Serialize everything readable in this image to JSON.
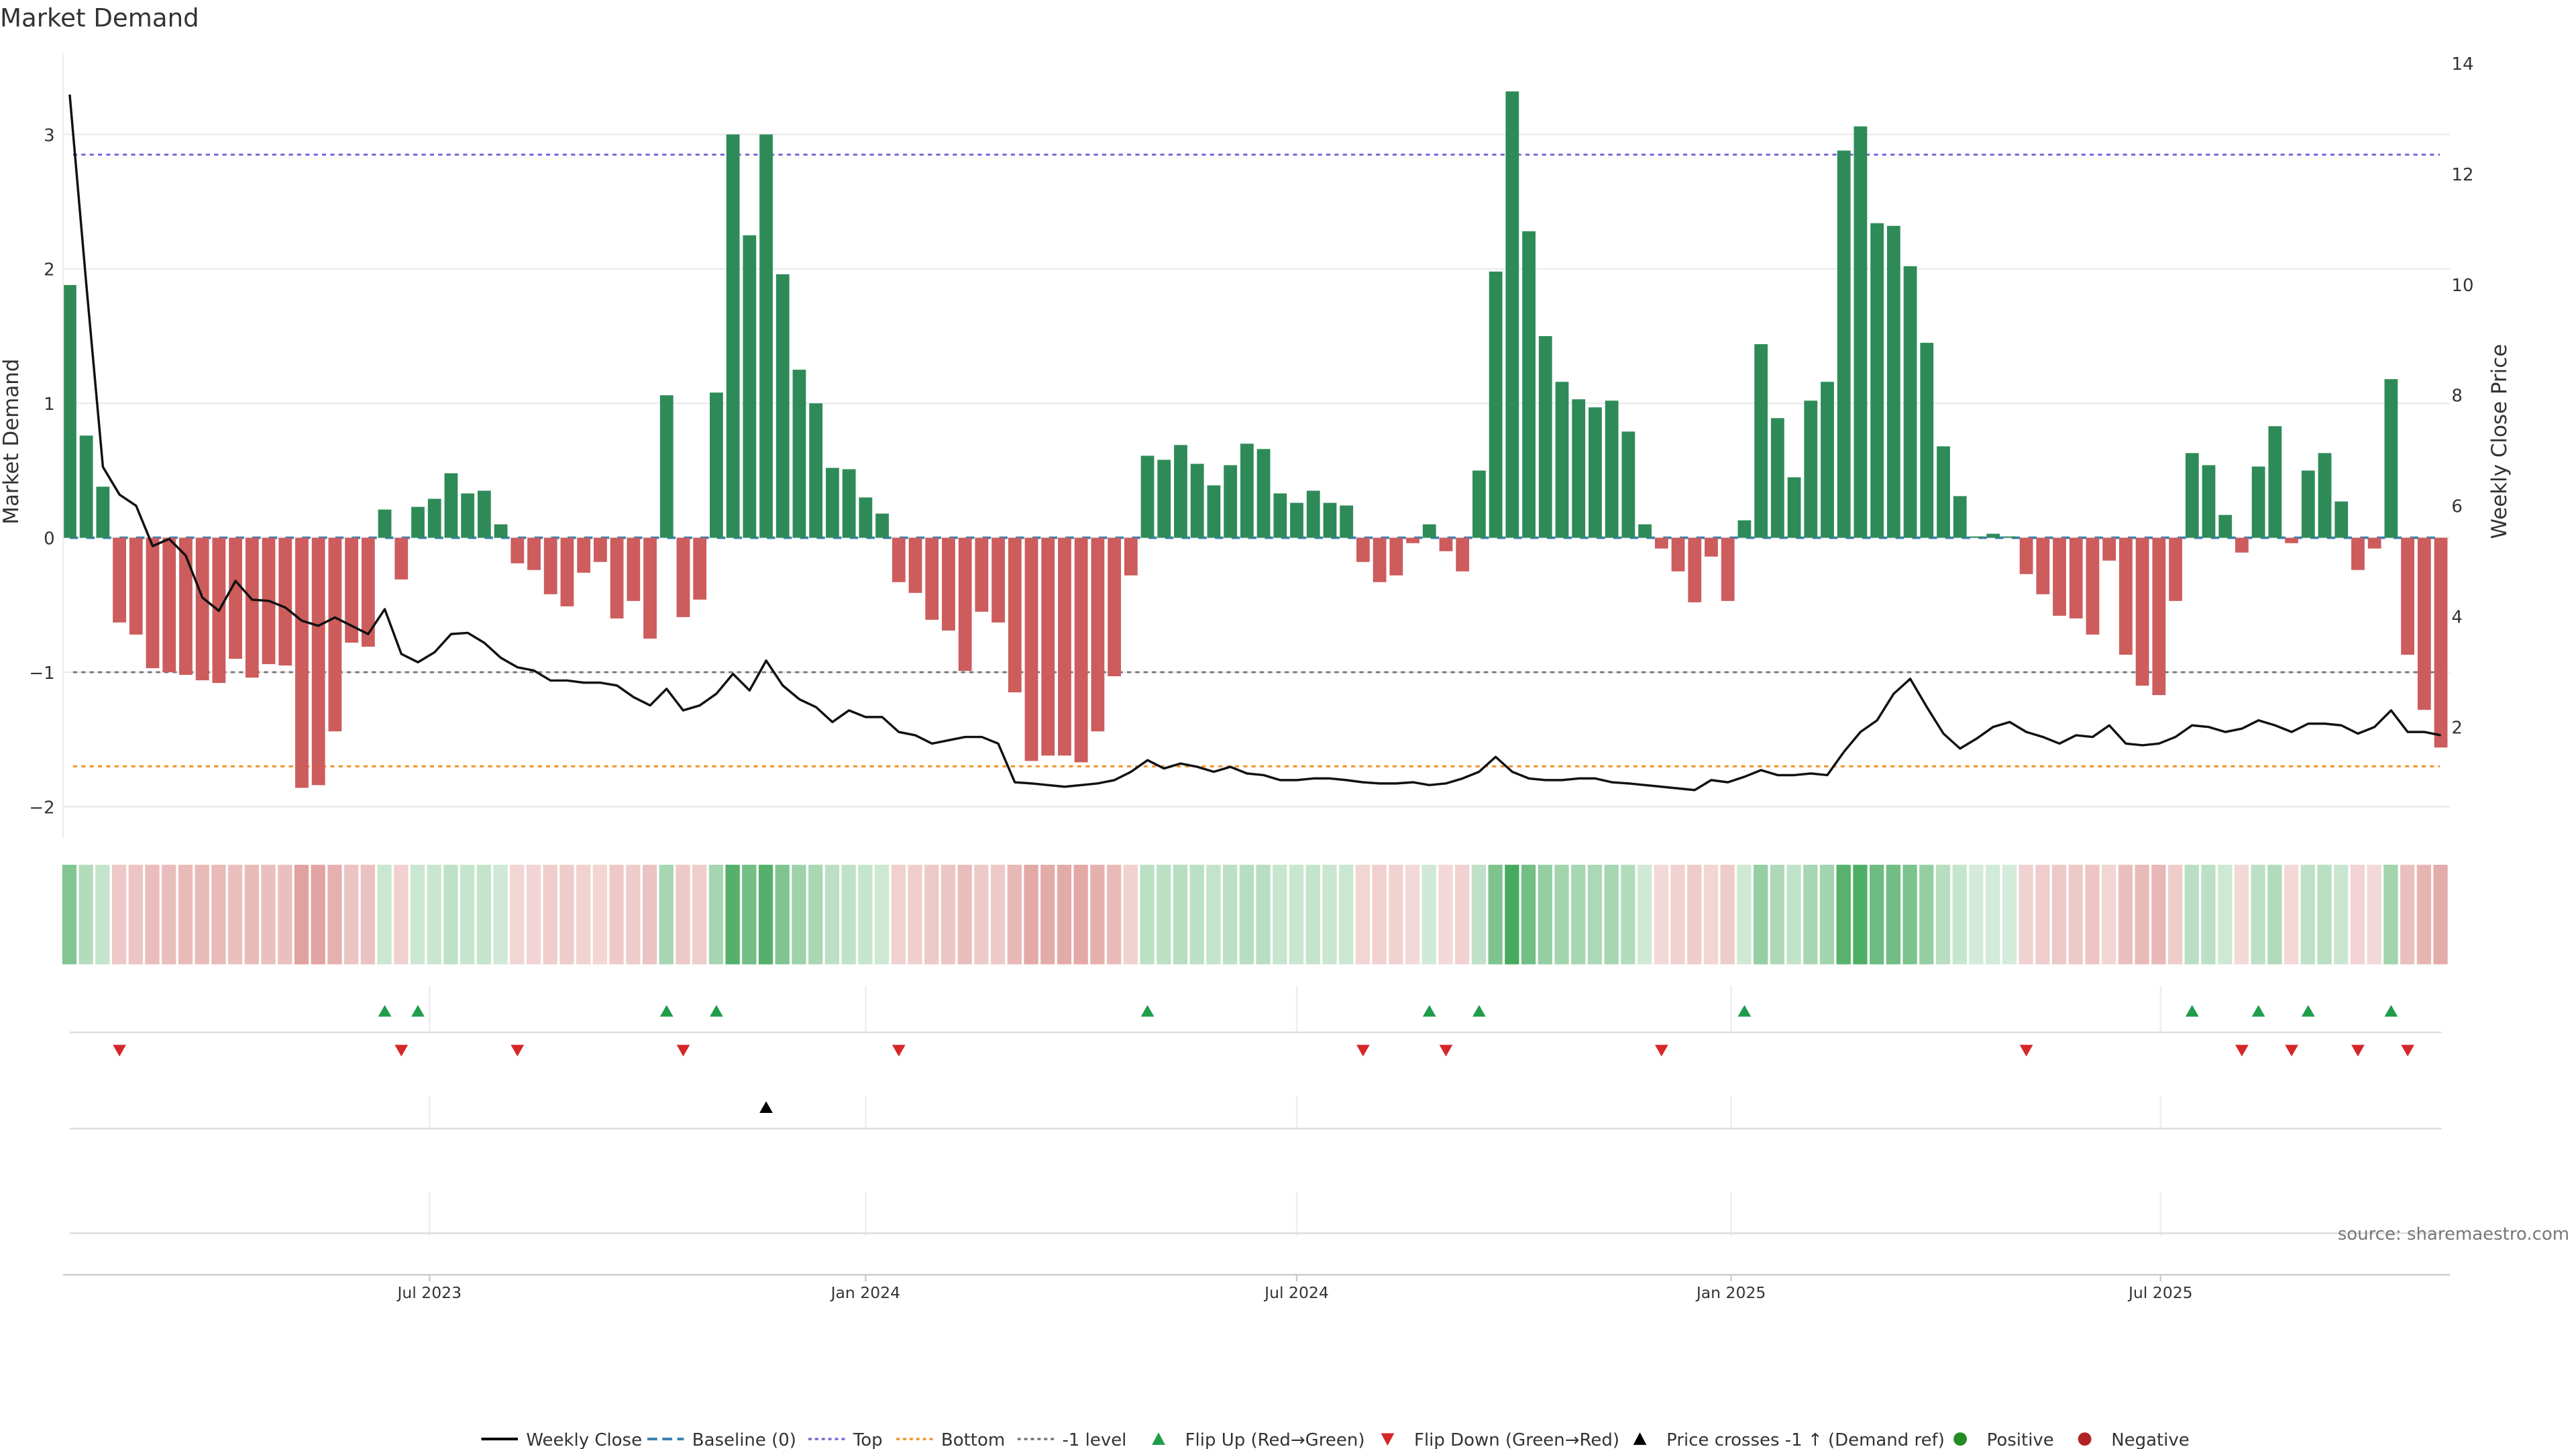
{
  "chart_data": {
    "type": "bar",
    "title": "Market Demand",
    "ylabel": "Market Demand",
    "y2label": "Weekly Close Price",
    "ylim": [
      -2.05,
      3.6
    ],
    "y2lim": [
      0.6,
      14.6
    ],
    "yticks": [
      "3",
      "2",
      "1",
      "0",
      "−1",
      "−2"
    ],
    "ytick_values": [
      3,
      2,
      1,
      0,
      -1,
      -2
    ],
    "y2ticks": [
      "14",
      "12",
      "10",
      "8",
      "6",
      "4",
      "2"
    ],
    "y2tick_values": [
      14,
      12,
      10,
      8,
      6,
      4,
      2
    ],
    "xticks": [
      {
        "label": "Jul 2023",
        "week": 21.7
      },
      {
        "label": "Jan 2024",
        "week": 48.0
      },
      {
        "label": "Jul 2024",
        "week": 74.0
      },
      {
        "label": "Jan 2025",
        "week": 100.2
      },
      {
        "label": "Jul 2025",
        "week": 126.1
      }
    ],
    "levels": {
      "top": 2.85,
      "bottom": -1.7,
      "minus_one": -1.0,
      "baseline": 0
    },
    "demand": [
      1.88,
      0.76,
      0.38,
      -0.63,
      -0.72,
      -0.97,
      -1.0,
      -1.02,
      -1.06,
      -1.08,
      -0.9,
      -1.04,
      -0.94,
      -0.95,
      -1.86,
      -1.84,
      -1.44,
      -0.78,
      -0.81,
      0.21,
      -0.31,
      0.23,
      0.29,
      0.48,
      0.33,
      0.35,
      0.1,
      -0.19,
      -0.24,
      -0.42,
      -0.51,
      -0.26,
      -0.18,
      -0.6,
      -0.47,
      -0.75,
      1.06,
      -0.59,
      -0.46,
      1.08,
      3.0,
      2.25,
      3.0,
      1.96,
      1.25,
      1.0,
      0.52,
      0.51,
      0.3,
      0.18,
      -0.33,
      -0.41,
      -0.61,
      -0.69,
      -0.99,
      -0.55,
      -0.63,
      -1.15,
      -1.66,
      -1.62,
      -1.62,
      -1.67,
      -1.44,
      -1.03,
      -0.28,
      0.61,
      0.58,
      0.69,
      0.55,
      0.39,
      0.54,
      0.7,
      0.66,
      0.33,
      0.26,
      0.35,
      0.26,
      0.24,
      -0.18,
      -0.33,
      -0.28,
      -0.04,
      0.1,
      -0.1,
      -0.25,
      0.5,
      1.98,
      3.32,
      2.28,
      1.5,
      1.16,
      1.03,
      0.97,
      1.02,
      0.79,
      0.1,
      -0.08,
      -0.25,
      -0.48,
      -0.14,
      -0.47,
      0.13,
      1.44,
      0.89,
      0.45,
      1.02,
      1.16,
      2.88,
      3.06,
      2.34,
      2.32,
      2.02,
      1.45,
      0.68,
      0.31,
      0.01,
      0.03,
      0.01,
      -0.27,
      -0.42,
      -0.58,
      -0.6,
      -0.72,
      -0.17,
      -0.87,
      -1.1,
      -1.17,
      -0.47,
      0.63,
      0.54,
      0.17,
      -0.11,
      0.53,
      0.83,
      -0.04,
      0.5,
      0.63,
      0.27,
      -0.24,
      -0.08,
      1.18,
      -0.87,
      -1.28,
      -1.56
    ],
    "weekly_close": [
      13.43,
      10.0,
      6.7,
      6.2,
      6.0,
      5.27,
      5.4,
      5.1,
      4.34,
      4.1,
      4.64,
      4.3,
      4.28,
      4.16,
      3.92,
      3.83,
      3.98,
      3.83,
      3.68,
      4.13,
      3.32,
      3.17,
      3.35,
      3.68,
      3.7,
      3.52,
      3.25,
      3.08,
      3.02,
      2.84,
      2.84,
      2.8,
      2.8,
      2.75,
      2.54,
      2.39,
      2.69,
      2.3,
      2.39,
      2.6,
      2.96,
      2.66,
      3.2,
      2.75,
      2.5,
      2.36,
      2.09,
      2.3,
      2.18,
      2.18,
      1.91,
      1.85,
      1.7,
      1.76,
      1.82,
      1.82,
      1.7,
      1.0,
      0.98,
      0.95,
      0.92,
      0.95,
      0.98,
      1.04,
      1.19,
      1.4,
      1.25,
      1.34,
      1.28,
      1.19,
      1.28,
      1.16,
      1.13,
      1.04,
      1.04,
      1.07,
      1.07,
      1.04,
      1.0,
      0.98,
      0.98,
      1.0,
      0.95,
      0.98,
      1.07,
      1.19,
      1.46,
      1.19,
      1.07,
      1.04,
      1.04,
      1.07,
      1.07,
      1.0,
      0.98,
      0.95,
      0.92,
      0.89,
      0.86,
      1.04,
      1.0,
      1.1,
      1.22,
      1.13,
      1.13,
      1.16,
      1.13,
      1.55,
      1.91,
      2.12,
      2.6,
      2.87,
      2.36,
      1.88,
      1.61,
      1.79,
      2.0,
      2.09,
      1.91,
      1.82,
      1.7,
      1.85,
      1.82,
      2.03,
      1.7,
      1.67,
      1.7,
      1.82,
      2.03,
      2.0,
      1.91,
      1.97,
      2.12,
      2.03,
      1.91,
      2.06,
      2.06,
      2.03,
      1.88,
      2.0,
      2.3,
      1.91,
      1.91,
      1.85
    ],
    "flip_up_weeks": [
      19,
      21,
      36,
      39,
      65,
      82,
      85,
      101,
      128,
      132,
      135,
      140
    ],
    "flip_down_weeks": [
      3,
      20,
      27,
      37,
      50,
      78,
      83,
      96,
      118,
      131,
      134,
      138,
      141
    ],
    "price_cross_weeks": [
      42
    ],
    "legend": [
      {
        "label": "Weekly Close",
        "kind": "line",
        "color": "#000000"
      },
      {
        "label": "Baseline (0)",
        "kind": "dash",
        "color": "#3a7fb0"
      },
      {
        "label": "Top",
        "kind": "dot",
        "color": "#7b68d8"
      },
      {
        "label": "Bottom",
        "kind": "dot",
        "color": "#f0932b"
      },
      {
        "label": "-1 level",
        "kind": "dot",
        "color": "#777777"
      },
      {
        "label": "Flip Up (Red→Green)",
        "kind": "up",
        "color": "#1f9d4a"
      },
      {
        "label": "Flip Down (Green→Red)",
        "kind": "down",
        "color": "#d62728"
      },
      {
        "label": "Price crosses -1 ↑ (Demand ref)",
        "kind": "up",
        "color": "#000000"
      },
      {
        "label": "Positive",
        "kind": "circle",
        "color": "#228b22"
      },
      {
        "label": "Negative",
        "kind": "circle",
        "color": "#b22222"
      }
    ],
    "legend_placement": "bottom",
    "colors": {
      "positive": "#2e8b57",
      "negative": "#cd5c5c",
      "grid": "#ececec"
    }
  },
  "source": "source: sharemaestro.com"
}
